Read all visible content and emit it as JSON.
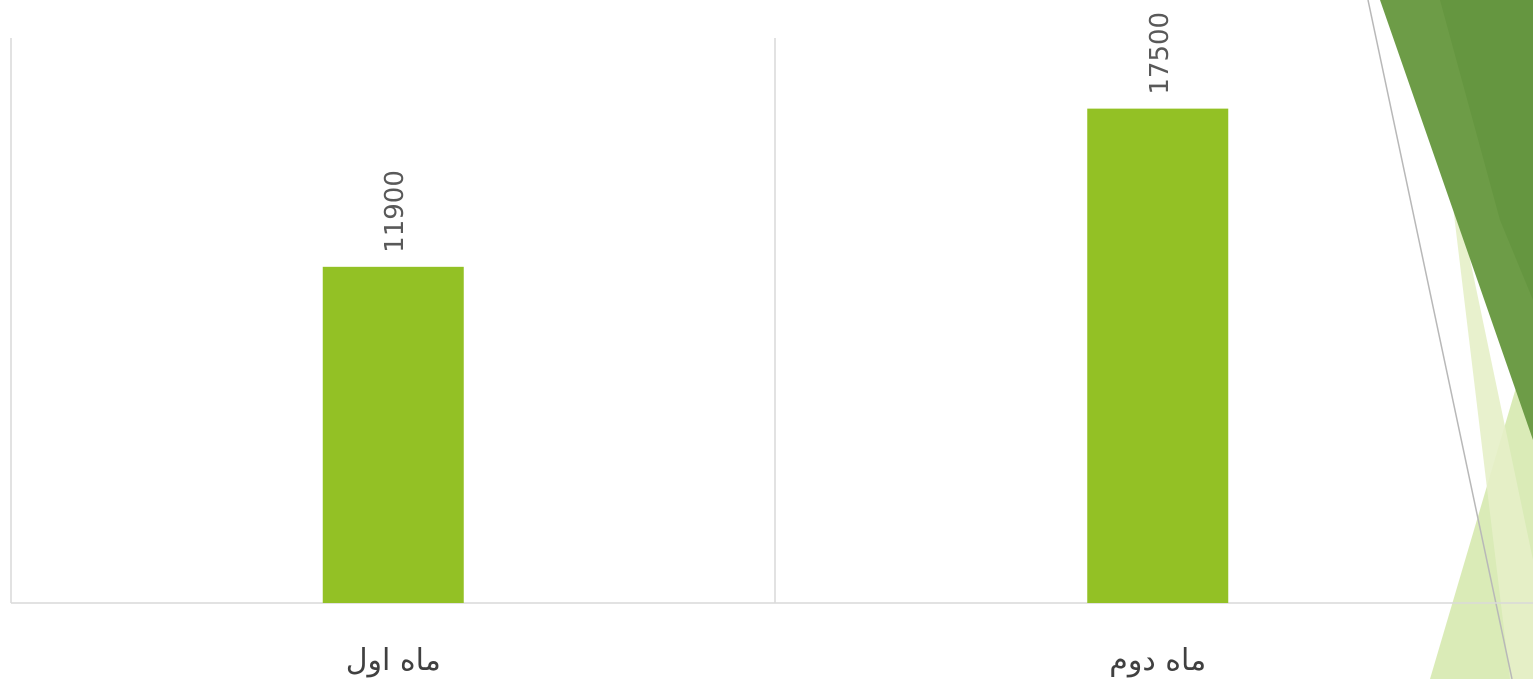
{
  "chart_data": {
    "type": "bar",
    "categories": [
      "ماه اول",
      "ماه دوم"
    ],
    "values": [
      11900,
      17500
    ],
    "data_labels": [
      "11900",
      "17500"
    ],
    "title": "",
    "xlabel": "",
    "ylabel": "",
    "ylim": [
      0,
      20000
    ],
    "grid": "vertical category dividers",
    "legend": "none",
    "bar_color": "#93c125",
    "axis_color": "#d9d9d9"
  },
  "decor": {
    "theme_color_dark": "#6d9c47",
    "theme_color_light": "#d4e7aa"
  }
}
